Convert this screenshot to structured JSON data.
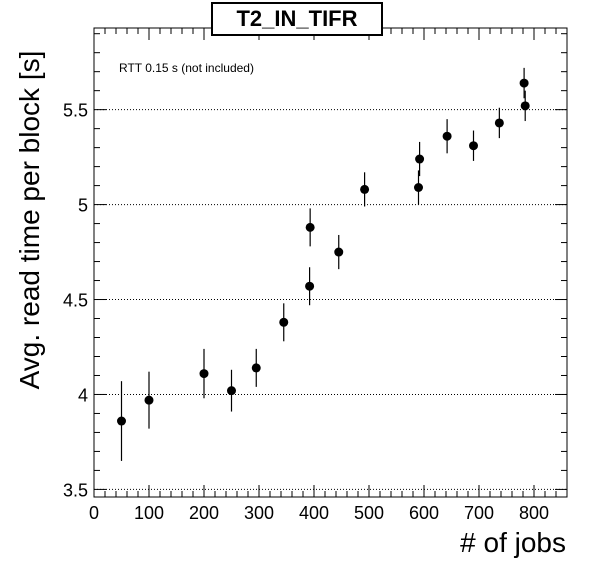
{
  "chart_data": {
    "type": "scatter",
    "title": "T2_IN_TIFR",
    "annotation": "RTT 0.15 s (not included)",
    "xlabel": "# of jobs",
    "ylabel": "Avg. read time per block [s]",
    "xlim": [
      0,
      860
    ],
    "ylim": [
      3.46,
      5.93
    ],
    "xticks": [
      0,
      100,
      200,
      300,
      400,
      500,
      600,
      700,
      800
    ],
    "yticks": [
      3.5,
      4,
      4.5,
      5,
      5.5
    ],
    "ytick_labels": [
      "3.5",
      "4",
      "4.5",
      "5",
      "5.5"
    ],
    "grid_y": true,
    "grid_x": false,
    "points": [
      {
        "x": 50,
        "y": 3.86,
        "err_low": 0.21,
        "err_high": 0.21
      },
      {
        "x": 100,
        "y": 3.97,
        "err_low": 0.15,
        "err_high": 0.15
      },
      {
        "x": 200,
        "y": 4.11,
        "err_low": 0.13,
        "err_high": 0.13
      },
      {
        "x": 250,
        "y": 4.02,
        "err_low": 0.11,
        "err_high": 0.11
      },
      {
        "x": 295,
        "y": 4.14,
        "err_low": 0.1,
        "err_high": 0.1
      },
      {
        "x": 345,
        "y": 4.38,
        "err_low": 0.1,
        "err_high": 0.1
      },
      {
        "x": 392,
        "y": 4.57,
        "err_low": 0.1,
        "err_high": 0.1
      },
      {
        "x": 393,
        "y": 4.88,
        "err_low": 0.1,
        "err_high": 0.1
      },
      {
        "x": 445,
        "y": 4.75,
        "err_low": 0.09,
        "err_high": 0.09
      },
      {
        "x": 492,
        "y": 5.08,
        "err_low": 0.09,
        "err_high": 0.09
      },
      {
        "x": 590,
        "y": 5.09,
        "err_low": 0.09,
        "err_high": 0.09
      },
      {
        "x": 592,
        "y": 5.24,
        "err_low": 0.09,
        "err_high": 0.09
      },
      {
        "x": 642,
        "y": 5.36,
        "err_low": 0.09,
        "err_high": 0.09
      },
      {
        "x": 690,
        "y": 5.31,
        "err_low": 0.08,
        "err_high": 0.08
      },
      {
        "x": 737,
        "y": 5.43,
        "err_low": 0.08,
        "err_high": 0.08
      },
      {
        "x": 782,
        "y": 5.64,
        "err_low": 0.08,
        "err_high": 0.08
      },
      {
        "x": 784,
        "y": 5.52,
        "err_low": 0.08,
        "err_high": 0.08
      }
    ]
  }
}
